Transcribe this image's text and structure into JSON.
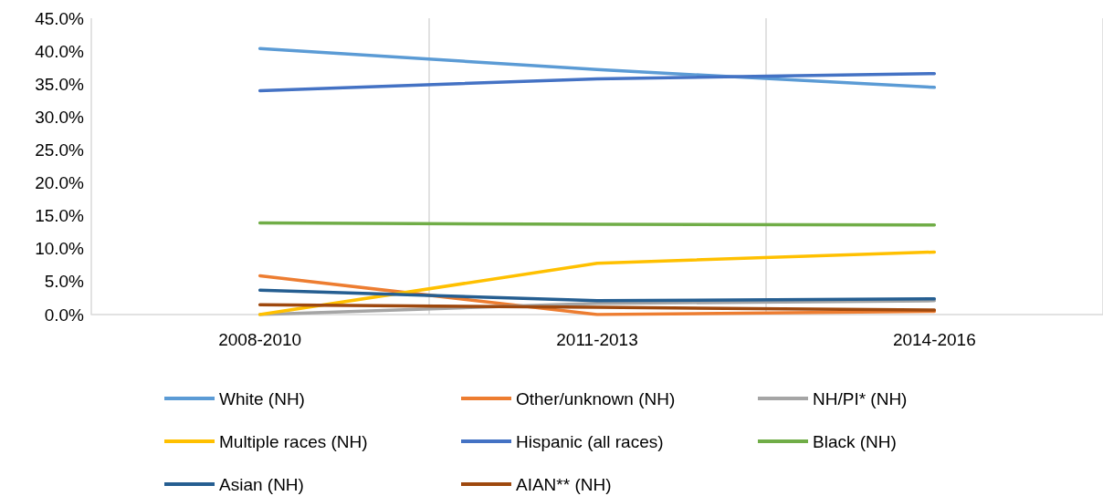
{
  "chart_data": {
    "type": "line",
    "categories": [
      "2008-2010",
      "2011-2013",
      "2014-2016"
    ],
    "series": [
      {
        "name": "White (NH)",
        "color": "#5b9bd5",
        "values": [
          40.4,
          37.2,
          34.5
        ]
      },
      {
        "name": "Other/unknown (NH)",
        "color": "#ed7d31",
        "values": [
          5.9,
          0.0,
          0.5
        ]
      },
      {
        "name": "NH/PI* (NH)",
        "color": "#a5a5a5",
        "values": [
          0.0,
          1.7,
          2.1
        ]
      },
      {
        "name": "Multiple races (NH)",
        "color": "#ffc000",
        "values": [
          0.0,
          7.8,
          9.5
        ]
      },
      {
        "name": "Hispanic (all races)",
        "color": "#4472c4",
        "values": [
          34.0,
          35.8,
          36.6
        ]
      },
      {
        "name": "Black (NH)",
        "color": "#70ad47",
        "values": [
          13.9,
          13.7,
          13.6
        ]
      },
      {
        "name": "Asian (NH)",
        "color": "#255e91",
        "values": [
          3.7,
          2.1,
          2.4
        ]
      },
      {
        "name": "AIAN** (NH)",
        "color": "#9e480e",
        "values": [
          1.5,
          1.1,
          0.7
        ]
      }
    ],
    "ylim": [
      0,
      45
    ],
    "yticks": [
      {
        "value": 0,
        "label": "0.0%"
      },
      {
        "value": 5,
        "label": "5.0%"
      },
      {
        "value": 10,
        "label": "10.0%"
      },
      {
        "value": 15,
        "label": "15.0%"
      },
      {
        "value": 20,
        "label": "20.0%"
      },
      {
        "value": 25,
        "label": "25.0%"
      },
      {
        "value": 30,
        "label": "30.0%"
      },
      {
        "value": 35,
        "label": "35.0%"
      },
      {
        "value": 40,
        "label": "40.0%"
      },
      {
        "value": 45,
        "label": "45.0%"
      }
    ],
    "grid": "x",
    "legend": "bottom",
    "marker": "none",
    "line_style": "solid"
  }
}
